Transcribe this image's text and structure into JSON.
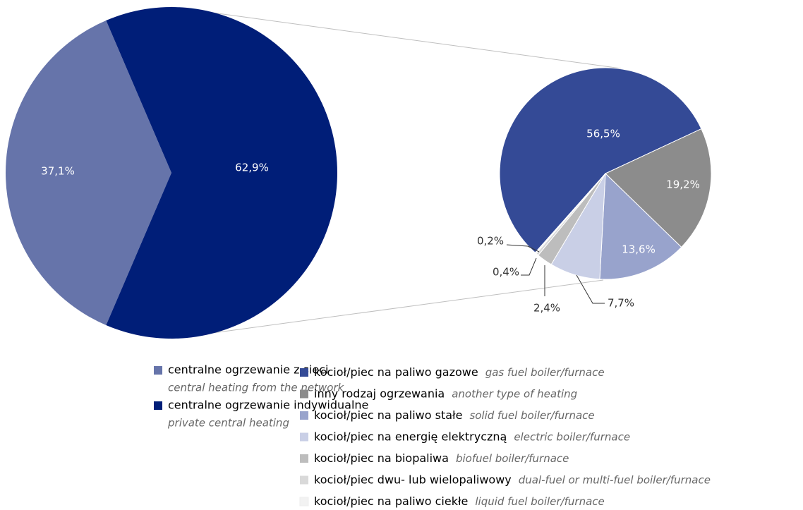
{
  "chart_data": [
    {
      "type": "pie",
      "categories": [
        "centralne ogrzewanie z sieci",
        "centralne ogrzewanie indywidualne"
      ],
      "categories_en": [
        "central heating from the network",
        "private central heating"
      ],
      "values": [
        37.1,
        62.9
      ],
      "value_labels": [
        "37,1%",
        "62,9%"
      ],
      "colors": [
        "#6674aa",
        "#001e78"
      ]
    },
    {
      "type": "pie",
      "categories": [
        "kocioł/piec na paliwo gazowe",
        "inny rodzaj ogrzewania",
        "kocioł/piec na paliwo stałe",
        "kocioł/piec na energię elektryczną",
        "kocioł/piec na biopaliwa",
        "kocioł/piec dwu- lub wielopaliwowy",
        "kocioł/piec na paliwo ciekłe"
      ],
      "categories_en": [
        "gas fuel boiler/furnace",
        "another type of heating",
        "solid fuel boiler/furnace",
        "electric boiler/furnace",
        "biofuel boiler/furnace",
        "dual-fuel or multi-fuel boiler/furnace",
        "liquid fuel boiler/furnace"
      ],
      "values": [
        56.5,
        19.2,
        13.6,
        7.7,
        2.4,
        0.4,
        0.2
      ],
      "value_labels": [
        "56,5%",
        "19,2%",
        "13,6%",
        "7,7%",
        "2,4%",
        "0,4%",
        "0,2%"
      ],
      "colors": [
        "#344a96",
        "#8c8c8c",
        "#98a3cc",
        "#c9cfe6",
        "#bdbdbd",
        "#d9d9d9",
        "#f2f2f2"
      ]
    }
  ]
}
